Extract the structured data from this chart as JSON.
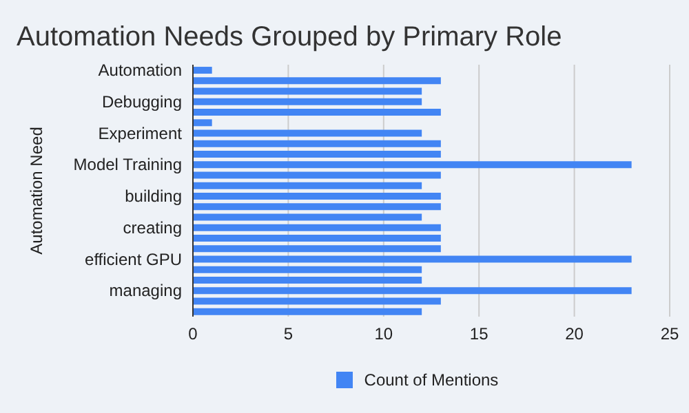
{
  "chart_data": {
    "type": "bar",
    "orientation": "horizontal",
    "title": "Automation Needs Grouped by Primary Role",
    "xlabel": "Count of Mentions",
    "ylabel": "Automation Need",
    "categories": [
      "Automation",
      null,
      null,
      "Debugging",
      null,
      null,
      "Experiment",
      null,
      null,
      "Model Training",
      null,
      null,
      "building",
      null,
      null,
      "creating",
      null,
      null,
      "efficient GPU",
      null,
      null,
      "managing",
      null,
      null
    ],
    "series": [
      {
        "color": "#4285f4",
        "values": [
          1,
          13,
          12,
          12,
          13,
          1,
          12,
          13,
          13,
          23,
          13,
          12,
          13,
          13,
          12,
          13,
          13,
          13,
          23,
          12,
          12,
          23,
          13,
          12
        ]
      }
    ],
    "xlim": [
      0,
      25
    ],
    "xticks": [
      0,
      5,
      10,
      15,
      20,
      25
    ],
    "grid": "x"
  }
}
